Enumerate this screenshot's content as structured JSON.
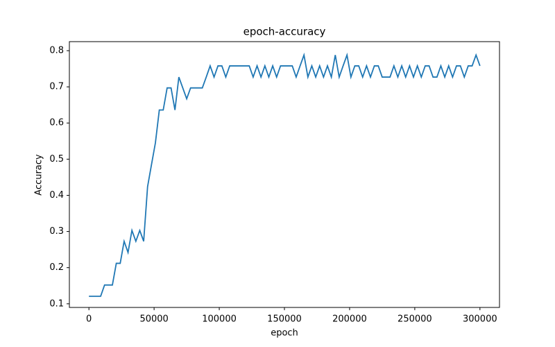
{
  "chart_data": {
    "type": "line",
    "title": "epoch-accuracy",
    "xlabel": "epoch",
    "ylabel": "Accuracy",
    "x": [
      0,
      3000,
      6000,
      9000,
      12000,
      15000,
      18000,
      21000,
      24000,
      27000,
      30000,
      33000,
      36000,
      39000,
      42000,
      45000,
      48000,
      51000,
      54000,
      57000,
      60000,
      63000,
      66000,
      69000,
      72000,
      75000,
      78000,
      81000,
      84000,
      87000,
      90000,
      93000,
      96000,
      99000,
      102000,
      105000,
      108000,
      111000,
      114000,
      117000,
      120000,
      123000,
      126000,
      129000,
      132000,
      135000,
      138000,
      141000,
      144000,
      147000,
      150000,
      153000,
      156000,
      159000,
      162000,
      165000,
      168000,
      171000,
      174000,
      177000,
      180000,
      183000,
      186000,
      189000,
      192000,
      195000,
      198000,
      201000,
      204000,
      207000,
      210000,
      213000,
      216000,
      219000,
      222000,
      225000,
      228000,
      231000,
      234000,
      237000,
      240000,
      243000,
      246000,
      249000,
      252000,
      255000,
      258000,
      261000,
      264000,
      267000,
      270000,
      273000,
      276000,
      279000,
      282000,
      285000,
      288000,
      291000,
      294000,
      297000,
      300000
    ],
    "series": [
      {
        "name": "accuracy",
        "color": "#1f77b4",
        "values": [
          0.121,
          0.121,
          0.121,
          0.121,
          0.152,
          0.152,
          0.152,
          0.212,
          0.212,
          0.273,
          0.242,
          0.303,
          0.273,
          0.303,
          0.273,
          0.424,
          0.485,
          0.545,
          0.636,
          0.636,
          0.697,
          0.697,
          0.636,
          0.727,
          0.697,
          0.667,
          0.697,
          0.697,
          0.697,
          0.697,
          0.727,
          0.758,
          0.727,
          0.758,
          0.758,
          0.727,
          0.758,
          0.758,
          0.758,
          0.758,
          0.758,
          0.758,
          0.727,
          0.758,
          0.727,
          0.758,
          0.727,
          0.758,
          0.727,
          0.758,
          0.758,
          0.758,
          0.758,
          0.727,
          0.758,
          0.788,
          0.727,
          0.758,
          0.727,
          0.758,
          0.727,
          0.758,
          0.727,
          0.788,
          0.727,
          0.758,
          0.788,
          0.727,
          0.758,
          0.758,
          0.727,
          0.758,
          0.727,
          0.758,
          0.758,
          0.727,
          0.727,
          0.727,
          0.758,
          0.727,
          0.758,
          0.727,
          0.758,
          0.727,
          0.758,
          0.727,
          0.758,
          0.758,
          0.727,
          0.727,
          0.758,
          0.727,
          0.758,
          0.727,
          0.758,
          0.758,
          0.727,
          0.758,
          0.758,
          0.788,
          0.758
        ]
      }
    ],
    "xlim": [
      -15000,
      315000
    ],
    "xticks": [
      0,
      50000,
      100000,
      150000,
      200000,
      250000,
      300000
    ],
    "ylim": [
      0.09,
      0.825
    ],
    "yticks": [
      0.1,
      0.2,
      0.3,
      0.4,
      0.5,
      0.6,
      0.7,
      0.8
    ]
  }
}
